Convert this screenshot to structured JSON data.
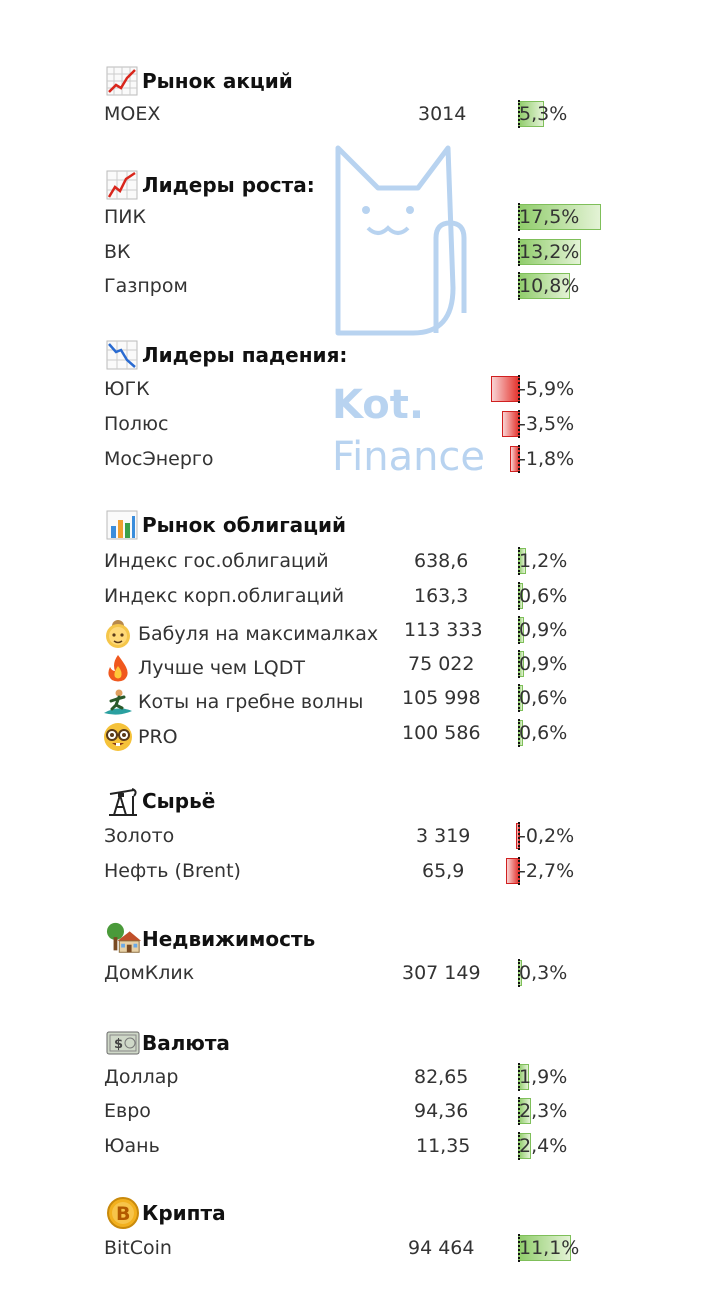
{
  "watermark": {
    "line1": "Kot.",
    "line2": "Finance",
    "color": "#9ec1e8"
  },
  "colors": {
    "positive": "#8fcc6a",
    "negative": "#e4302a"
  },
  "sections": [
    {
      "title": "Рынок акций",
      "icon": "chart-up-icon",
      "rows": [
        {
          "name": "MOEX",
          "value": "3014",
          "pct": "5,3%",
          "change": 5.3
        }
      ]
    },
    {
      "title": "Лидеры роста:",
      "icon": "trend-up-icon",
      "rows": [
        {
          "name": "ПИК",
          "value": "",
          "pct": "17,5%",
          "change": 17.5
        },
        {
          "name": "ВК",
          "value": "",
          "pct": "13,2%",
          "change": 13.2
        },
        {
          "name": "Газпром",
          "value": "",
          "pct": "10,8%",
          "change": 10.8
        }
      ]
    },
    {
      "title": "Лидеры падения:",
      "icon": "chart-down-icon",
      "rows": [
        {
          "name": "ЮГК",
          "value": "",
          "pct": "-5,9%",
          "change": -5.9
        },
        {
          "name": "Полюс",
          "value": "",
          "pct": "-3,5%",
          "change": -3.5
        },
        {
          "name": "МосЭнерго",
          "value": "",
          "pct": "-1,8%",
          "change": -1.8
        }
      ]
    },
    {
      "title": "Рынок облигаций",
      "icon": "bar-chart-icon",
      "rows": [
        {
          "name": "Индекс гос.облигаций",
          "value": "638,6",
          "pct": "1,2%",
          "change": 1.2
        },
        {
          "name": "Индекс корп.облигаций",
          "value": "163,3",
          "pct": "0,6%",
          "change": 0.6
        },
        {
          "name": "Бабуля на максималках",
          "value": "113 333",
          "pct": "0,9%",
          "change": 0.9,
          "emoji": "grandma-icon"
        },
        {
          "name": "Лучше чем LQDT",
          "value": "75 022",
          "pct": "0,9%",
          "change": 0.9,
          "emoji": "fire-icon"
        },
        {
          "name": "Коты на гребне волны",
          "value": "105 998",
          "pct": "0,6%",
          "change": 0.6,
          "emoji": "surfer-icon"
        },
        {
          "name": "PRO",
          "value": "100 586",
          "pct": "0,6%",
          "change": 0.6,
          "emoji": "nerd-face-icon"
        }
      ]
    },
    {
      "title": "Сырьё",
      "icon": "oil-pump-icon",
      "rows": [
        {
          "name": "Золото",
          "value": "3 319",
          "pct": "-0,2%",
          "change": -0.2
        },
        {
          "name": "Нефть (Brent)",
          "value": "65,9",
          "pct": "-2,7%",
          "change": -2.7
        }
      ]
    },
    {
      "title": "Недвижимость",
      "icon": "house-icon",
      "rows": [
        {
          "name": "ДомКлик",
          "value": "307 149",
          "pct": "0,3%",
          "change": 0.3
        }
      ]
    },
    {
      "title": "Валюта",
      "icon": "banknote-icon",
      "rows": [
        {
          "name": "Доллар",
          "value": "82,65",
          "pct": "1,9%",
          "change": 1.9
        },
        {
          "name": "Евро",
          "value": "94,36",
          "pct": "2,3%",
          "change": 2.3
        },
        {
          "name": "Юань",
          "value": "11,35",
          "pct": "2,4%",
          "change": 2.4
        }
      ]
    },
    {
      "title": "Крипта",
      "icon": "bitcoin-icon",
      "rows": [
        {
          "name": "BitCoin",
          "value": "94 464",
          "pct": "11,1%",
          "change": 11.1
        }
      ]
    }
  ]
}
